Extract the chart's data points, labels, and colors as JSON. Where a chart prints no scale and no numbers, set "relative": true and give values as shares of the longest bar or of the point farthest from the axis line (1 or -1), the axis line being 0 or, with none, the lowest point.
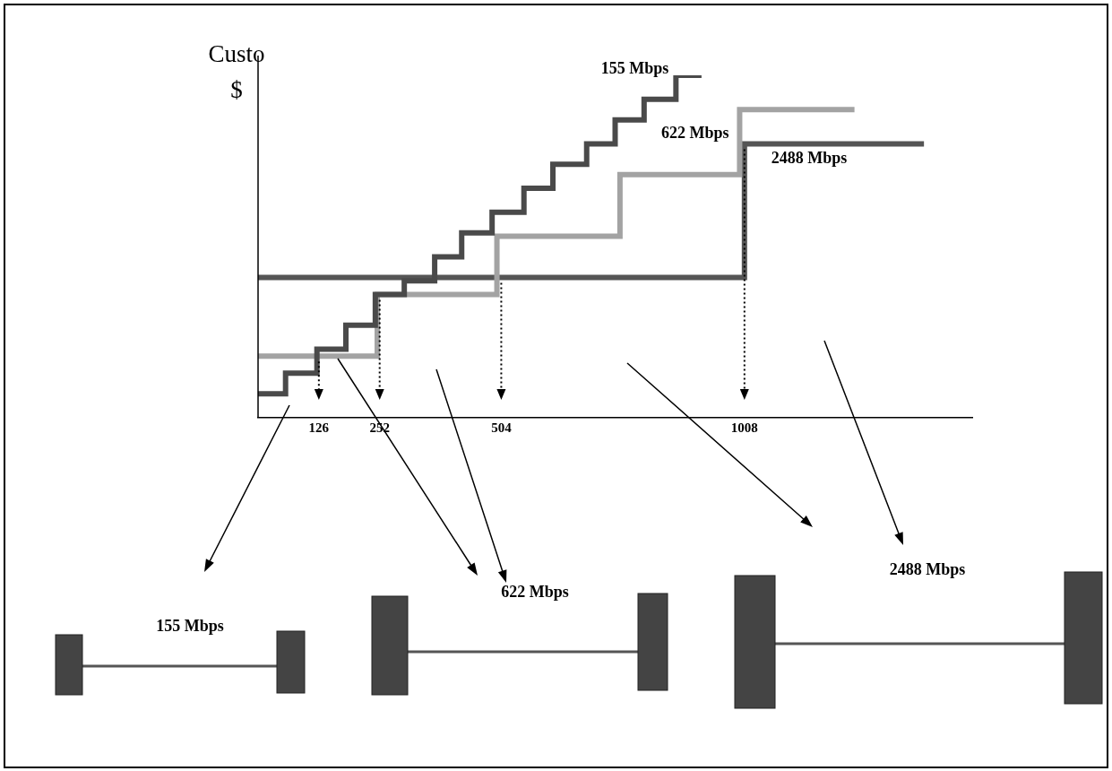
{
  "chart_data": {
    "type": "step",
    "ylabel": "Custo $",
    "relative": true,
    "xlim": [
      0,
      1480
    ],
    "xticks": [
      126,
      252,
      504,
      1008
    ],
    "series": [
      {
        "name": "155 Mbps",
        "color": "#4a4a4a",
        "x": [
          0,
          57,
          122,
          182,
          243,
          303,
          366,
          422,
          485,
          551,
          611,
          681,
          740,
          800,
          866,
          919
        ],
        "values": [
          0.07,
          0.13,
          0.2,
          0.27,
          0.36,
          0.4,
          0.47,
          0.54,
          0.6,
          0.67,
          0.74,
          0.8,
          0.87,
          0.93,
          1,
          1
        ]
      },
      {
        "name": "622 Mbps",
        "color": "#a3a3a3",
        "x": [
          0,
          247,
          495,
          750,
          998,
          1236
        ],
        "values": [
          0.18,
          0.36,
          0.53,
          0.71,
          0.9,
          0.9
        ]
      },
      {
        "name": "2488 Mbps",
        "color": "#555555",
        "x": [
          0,
          1008,
          1380
        ],
        "values": [
          0.41,
          0.8,
          0.8
        ]
      }
    ],
    "ref_lines": [
      {
        "axis": "x",
        "value": 126,
        "line_style": "dotted"
      },
      {
        "axis": "x",
        "value": 252,
        "line_style": "dotted"
      },
      {
        "axis": "x",
        "value": 504,
        "line_style": "dotted"
      },
      {
        "axis": "x",
        "value": 1008,
        "line_style": "dotted"
      }
    ],
    "annotations": [
      "155 Mbps",
      "622 Mbps",
      "2488 Mbps"
    ]
  }
}
